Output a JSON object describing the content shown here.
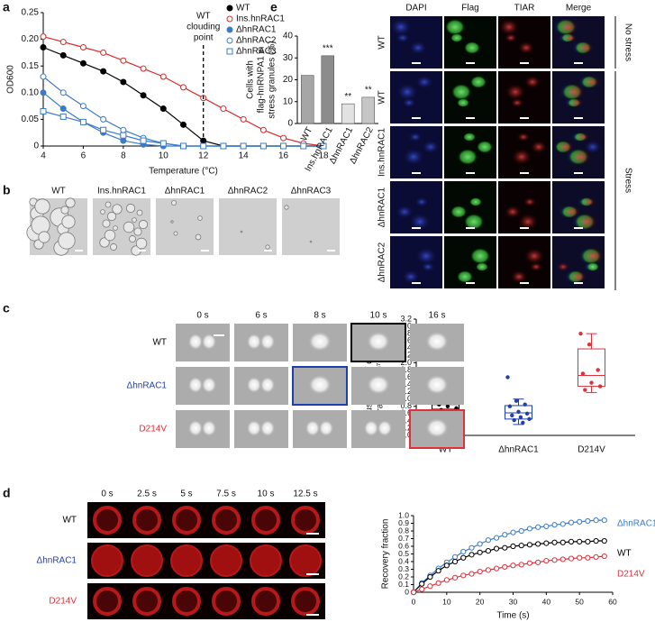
{
  "panel_letters": [
    "a",
    "b",
    "c",
    "d",
    "e"
  ],
  "chart_data": [
    {
      "type": "line",
      "xlabel": "Temperature (°C)",
      "ylabel": [
        "OD600"
      ],
      "x": [
        4,
        5,
        6,
        7,
        8,
        9,
        10,
        11,
        12,
        13,
        14,
        15,
        16,
        17,
        18
      ],
      "series": [
        {
          "name": "WT",
          "color": "#000000",
          "marker": "circle",
          "filled": true,
          "values": [
            0.185,
            0.17,
            0.155,
            0.14,
            0.12,
            0.095,
            0.07,
            0.04,
            0.01,
            0,
            0,
            0,
            0,
            0,
            0
          ]
        },
        {
          "name": "Ins.hnRAC1",
          "color": "#d62a2a",
          "marker": "circle",
          "filled": false,
          "values": [
            0.205,
            0.195,
            0.185,
            0.175,
            0.16,
            0.145,
            0.13,
            0.11,
            0.09,
            0.07,
            0.05,
            0.03,
            0.015,
            0.005,
            0
          ]
        },
        {
          "name": "ΔhnRAC1",
          "color": "#3a7bc8",
          "marker": "circle",
          "filled": true,
          "values": [
            0.1,
            0.07,
            0.045,
            0.025,
            0.01,
            0.003,
            0,
            0,
            0,
            0,
            0,
            0,
            0,
            0,
            0
          ]
        },
        {
          "name": "ΔhnRAC2",
          "color": "#3a7bc8",
          "marker": "circle",
          "filled": false,
          "values": [
            0.13,
            0.1,
            0.075,
            0.05,
            0.03,
            0.015,
            0.005,
            0,
            0,
            0,
            0,
            0,
            0,
            0,
            0
          ]
        },
        {
          "name": "ΔhnRAC3",
          "color": "#3a7bc8",
          "marker": "square",
          "filled": false,
          "values": [
            0.065,
            0.055,
            0.045,
            0.03,
            0.02,
            0.01,
            0.005,
            0,
            0,
            0,
            0,
            0,
            0,
            0,
            0
          ]
        }
      ],
      "xlim": [
        4,
        18
      ],
      "xticks": [
        4,
        6,
        8,
        10,
        12,
        14,
        16,
        18
      ],
      "ylim": [
        0,
        0.25
      ],
      "yticks": [
        0,
        0.05,
        {
          "value": 0.1,
          "label": "0.10"
        },
        0.15,
        {
          "value": 0.2,
          "label": "0.20"
        },
        0.25
      ],
      "legend": "upper right",
      "annotation": {
        "lines": [
          "WT",
          "clouding",
          "point"
        ],
        "x": 12
      }
    },
    {
      "type": "bar",
      "ylabel": [
        "Cells with",
        "flag-hnRNPA1 in",
        "stress granules (%)"
      ],
      "categories": [
        "WT",
        "Ins.hnRAC1",
        "ΔhnRAC1",
        "ΔhnRAC2"
      ],
      "values": [
        22,
        31,
        9,
        12
      ],
      "colors": [
        "#a6a6a6",
        "#8c8c8c",
        "#e2e2e2",
        "#c6c6c6"
      ],
      "significance": [
        null,
        "***",
        "**",
        "**"
      ],
      "ylim": [
        0,
        40
      ],
      "yticks": [
        0,
        10,
        20,
        30,
        40
      ]
    },
    {
      "type": "box",
      "ylabel": [
        "Fusion time / droplet",
        "radius (×10⁷ s/m)"
      ],
      "categories": [
        "WT",
        "ΔhnRAC1",
        "D214V"
      ],
      "colors": [
        "#000000",
        "#1f3fae",
        "#e0303a"
      ],
      "min": [
        0.45,
        0.3,
        1.18
      ],
      "q1": [
        0.72,
        0.45,
        1.35
      ],
      "median": [
        0.85,
        0.62,
        1.65
      ],
      "q3": [
        1.08,
        0.82,
        2.38
      ],
      "max": [
        1.57,
        1.0,
        2.8
      ],
      "points": [
        [
          1.57,
          1.3,
          1.1,
          1.0,
          0.95,
          0.9,
          0.85,
          0.8,
          0.75,
          0.7,
          0.6,
          0.45
        ],
        [
          1.6,
          0.95,
          0.85,
          0.8,
          0.65,
          0.6,
          0.55,
          0.5,
          0.45,
          0.42,
          0.35
        ],
        [
          2.8,
          2.5,
          1.8,
          1.7,
          1.45,
          1.35,
          1.25
        ]
      ],
      "ylim": [
        0,
        3.2
      ],
      "yticks": [
        {
          "value": 0,
          "label": "0.0"
        },
        0.2,
        0.4,
        0.6,
        0.8,
        {
          "value": 1,
          "label": "1.0"
        },
        1.2,
        1.4,
        1.6,
        1.8,
        {
          "value": 2,
          "label": "2.0"
        },
        2.2,
        2.4,
        2.6,
        2.8,
        {
          "value": 3,
          "label": "3.0"
        },
        3.2
      ]
    },
    {
      "type": "line",
      "xlabel": "Time (s)",
      "ylabel": [
        "Recovery fraction"
      ],
      "x": [
        0,
        2.5,
        5,
        7.5,
        10,
        12.5,
        15,
        17.5,
        20,
        22.5,
        25,
        27.5,
        30,
        32.5,
        35,
        37.5,
        40,
        42.5,
        45,
        47.5,
        50,
        52.5,
        55,
        57.5
      ],
      "series": [
        {
          "name": "ΔhnRAC1",
          "color": "#3a7bc8",
          "marker": "circle",
          "filled": false,
          "values": [
            0,
            0.12,
            0.22,
            0.31,
            0.39,
            0.46,
            0.53,
            0.58,
            0.63,
            0.68,
            0.71,
            0.75,
            0.78,
            0.8,
            0.83,
            0.85,
            0.86,
            0.88,
            0.89,
            0.91,
            0.92,
            0.93,
            0.94,
            0.94
          ]
        },
        {
          "name": "WT",
          "color": "#000000",
          "marker": "circle",
          "filled": false,
          "values": [
            0,
            0.11,
            0.2,
            0.28,
            0.35,
            0.4,
            0.45,
            0.49,
            0.52,
            0.54,
            0.57,
            0.58,
            0.6,
            0.61,
            0.62,
            0.63,
            0.64,
            0.65,
            0.65,
            0.66,
            0.66,
            0.66,
            0.67,
            0.67
          ]
        },
        {
          "name": "D214V",
          "color": "#e0303a",
          "marker": "circle",
          "filled": false,
          "values": [
            0,
            0.04,
            0.08,
            0.12,
            0.16,
            0.19,
            0.22,
            0.24,
            0.27,
            0.29,
            0.31,
            0.33,
            0.35,
            0.36,
            0.38,
            0.39,
            0.41,
            0.42,
            0.43,
            0.44,
            0.45,
            0.45,
            0.46,
            0.47
          ]
        }
      ],
      "xlim": [
        0,
        60
      ],
      "xticks": [
        0,
        10,
        20,
        30,
        40,
        50,
        60
      ],
      "ylim": [
        0,
        1
      ],
      "yticks": [
        0,
        0.1,
        0.2,
        0.3,
        0.4,
        0.5,
        0.6,
        0.7,
        0.8,
        0.9,
        {
          "value": 1,
          "label": "1.0"
        }
      ],
      "legend": "right"
    }
  ],
  "panel_b": {
    "labels": [
      "WT",
      "Ins.hnRAC1",
      "ΔhnRAC1",
      "ΔhnRAC2",
      "ΔhnRAC3"
    ]
  },
  "panel_c": {
    "times": [
      "0 s",
      "6 s",
      "8 s",
      "10 s",
      "16 s"
    ],
    "rows": [
      "WT",
      "ΔhnRAC1",
      "D214V"
    ]
  },
  "panel_d": {
    "times": [
      "0 s",
      "2.5 s",
      "5 s",
      "7.5 s",
      "10 s",
      "12.5 s"
    ],
    "rows": [
      "WT",
      "ΔhnRAC1",
      "D214V"
    ]
  },
  "panel_e_images": {
    "columns": [
      "DAPI",
      "Flag",
      "TIAR",
      "Merge"
    ],
    "rows": [
      "WT",
      "WT",
      "Ins.hnRAC1",
      "ΔhnRAC1",
      "ΔhnRAC2"
    ],
    "groups": [
      "No stress",
      "Stress"
    ]
  }
}
